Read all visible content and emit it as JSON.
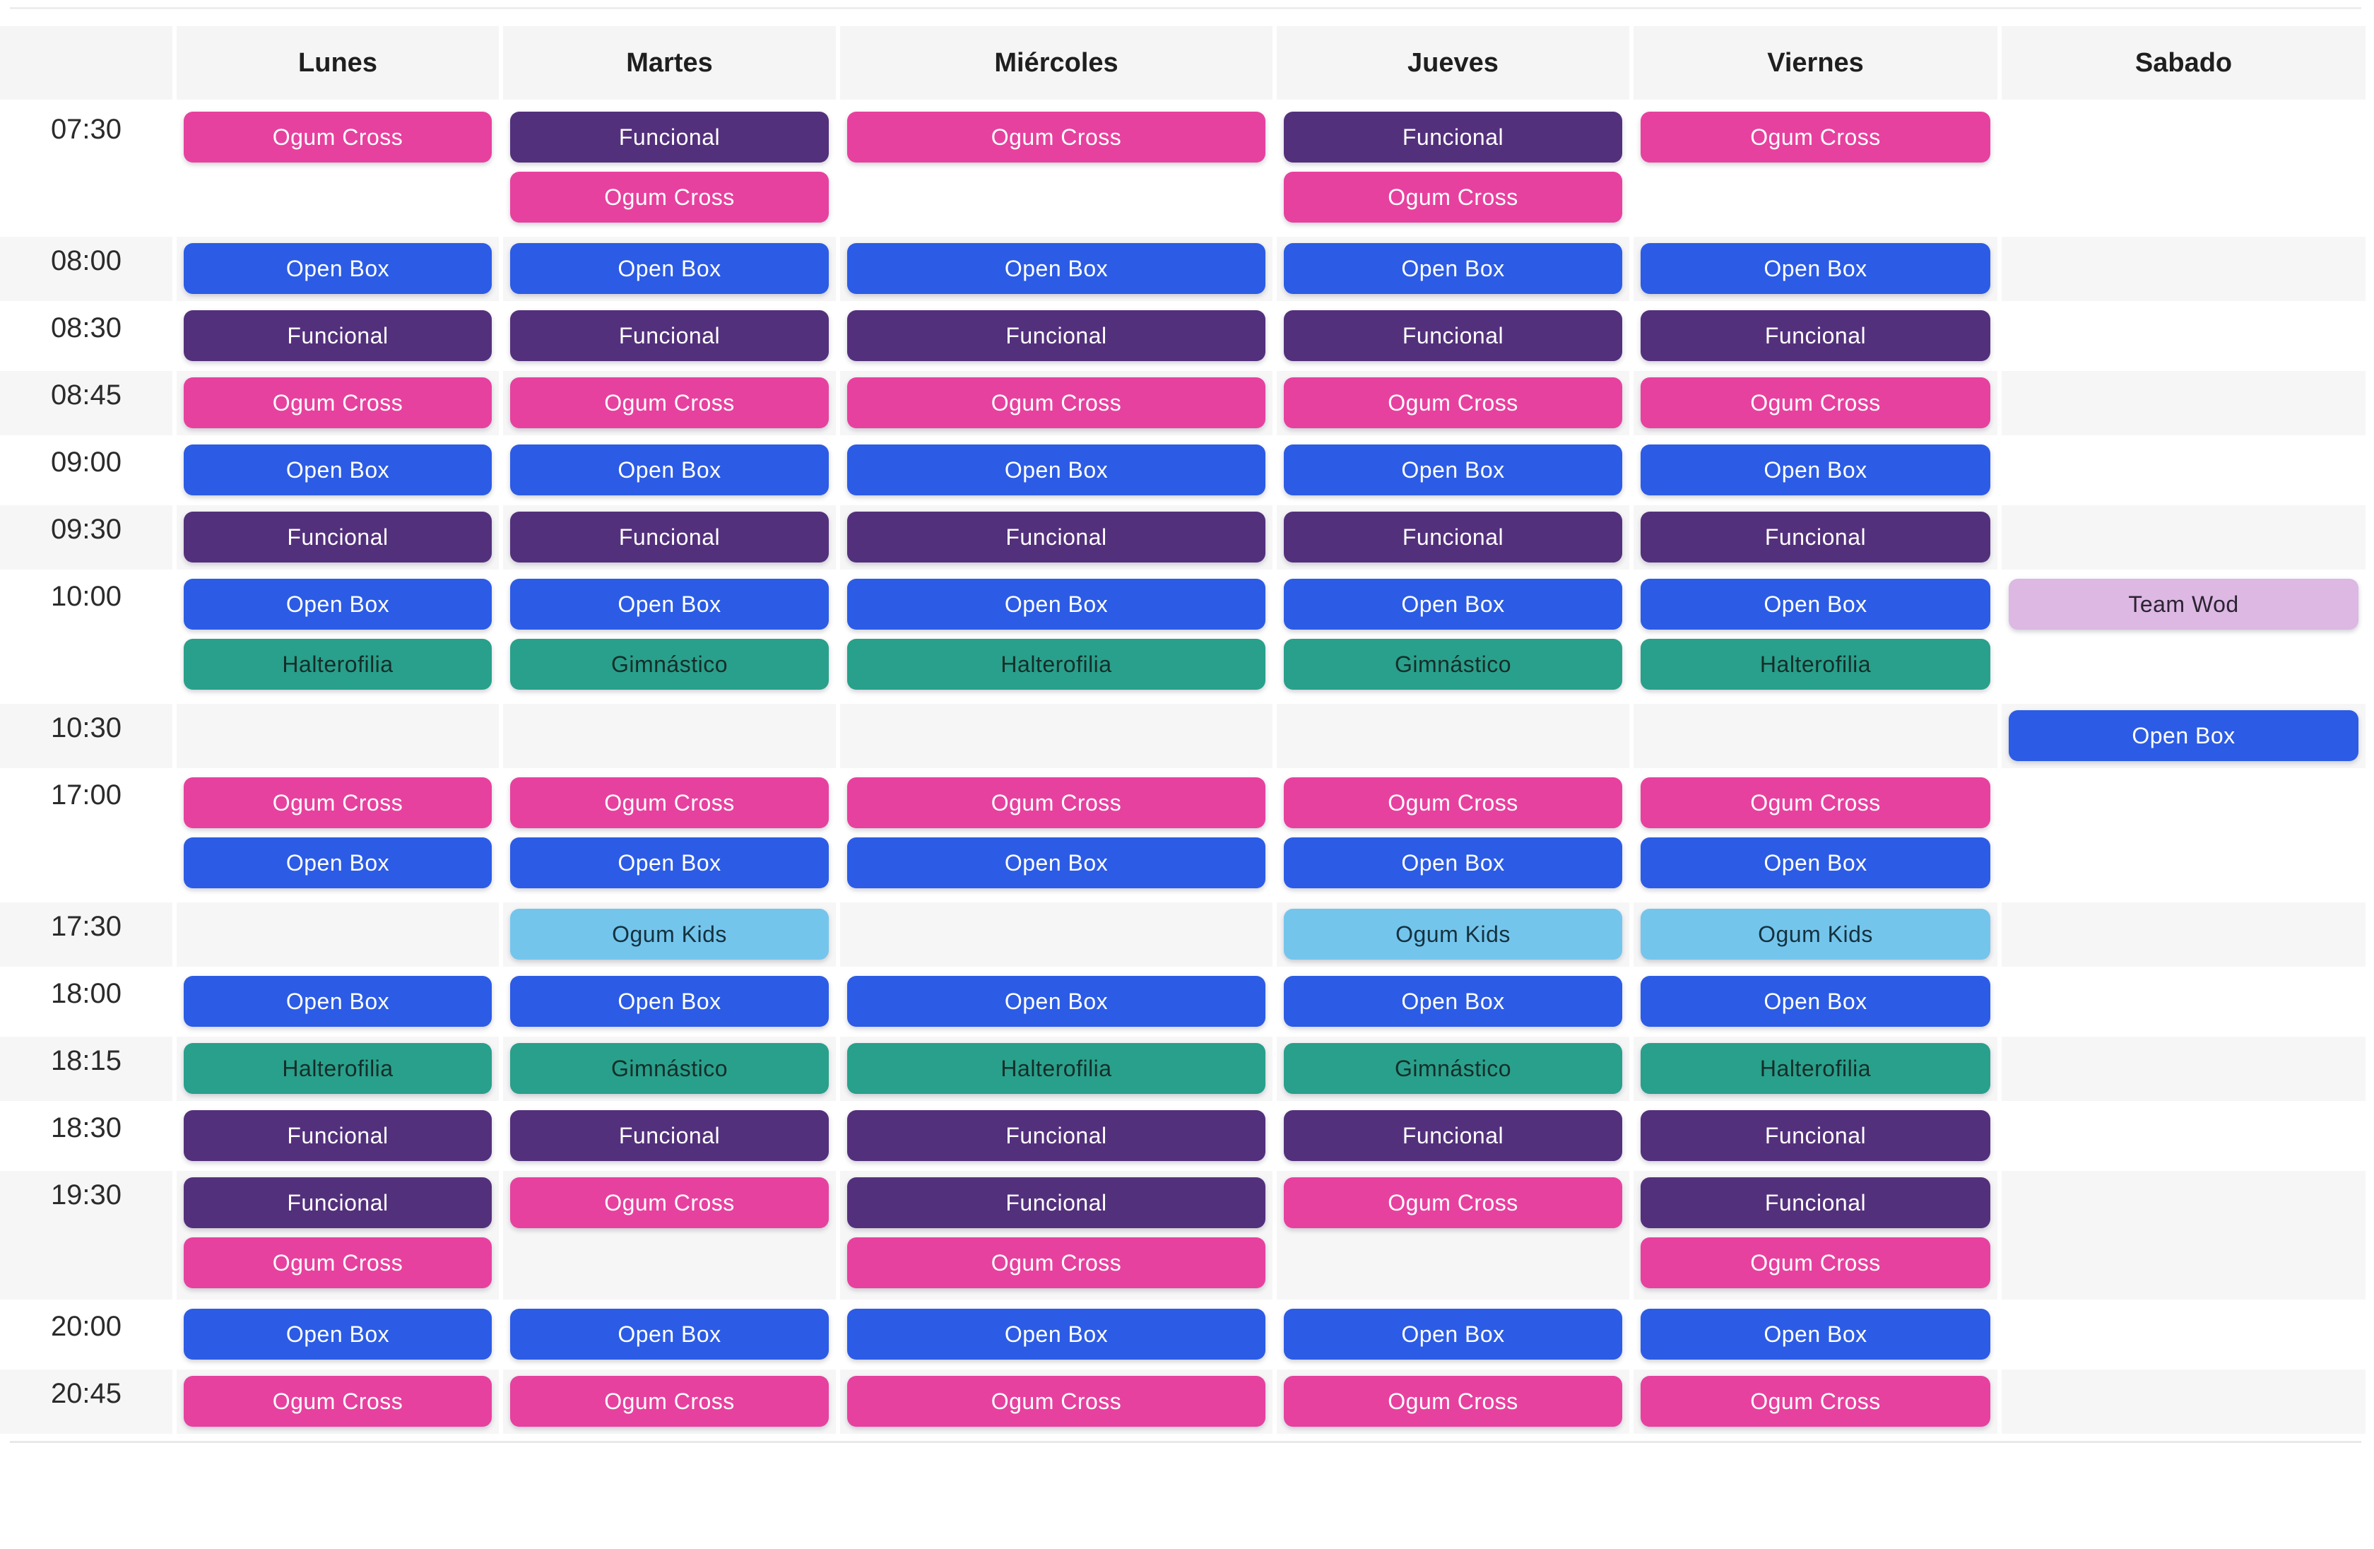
{
  "header": {
    "days": [
      "Lunes",
      "Martes",
      "Miércoles",
      "Jueves",
      "Viernes",
      "Sabado"
    ]
  },
  "class_types": {
    "ogum_cross": {
      "label": "Ogum Cross",
      "bg": "#e7419f",
      "text": "#ffffff"
    },
    "funcional": {
      "label": "Funcional",
      "bg": "#53307c",
      "text": "#ffffff"
    },
    "open_box": {
      "label": "Open Box",
      "bg": "#2c5ce5",
      "text": "#ffffff"
    },
    "halterofilia": {
      "label": "Halterofilia",
      "bg": "#29a08b",
      "text": "#152e2a"
    },
    "gimnastico": {
      "label": "Gimnástico",
      "bg": "#29a08b",
      "text": "#152e2a"
    },
    "ogum_kids": {
      "label": "Ogum Kids",
      "bg": "#74c5ec",
      "text": "#14323f"
    },
    "team_wod": {
      "label": "Team Wod",
      "bg": "#dcb8e3",
      "text": "#2c2333"
    }
  },
  "rows": [
    {
      "time": "07:30",
      "slots": 2,
      "cells": [
        [
          "ogum_cross"
        ],
        [
          "funcional",
          "ogum_cross"
        ],
        [
          "ogum_cross"
        ],
        [
          "funcional",
          "ogum_cross"
        ],
        [
          "ogum_cross"
        ],
        []
      ]
    },
    {
      "time": "08:00",
      "slots": 1,
      "cells": [
        [
          "open_box"
        ],
        [
          "open_box"
        ],
        [
          "open_box"
        ],
        [
          "open_box"
        ],
        [
          "open_box"
        ],
        []
      ]
    },
    {
      "time": "08:30",
      "slots": 1,
      "cells": [
        [
          "funcional"
        ],
        [
          "funcional"
        ],
        [
          "funcional"
        ],
        [
          "funcional"
        ],
        [
          "funcional"
        ],
        []
      ]
    },
    {
      "time": "08:45",
      "slots": 1,
      "cells": [
        [
          "ogum_cross"
        ],
        [
          "ogum_cross"
        ],
        [
          "ogum_cross"
        ],
        [
          "ogum_cross"
        ],
        [
          "ogum_cross"
        ],
        []
      ]
    },
    {
      "time": "09:00",
      "slots": 1,
      "cells": [
        [
          "open_box"
        ],
        [
          "open_box"
        ],
        [
          "open_box"
        ],
        [
          "open_box"
        ],
        [
          "open_box"
        ],
        []
      ]
    },
    {
      "time": "09:30",
      "slots": 1,
      "cells": [
        [
          "funcional"
        ],
        [
          "funcional"
        ],
        [
          "funcional"
        ],
        [
          "funcional"
        ],
        [
          "funcional"
        ],
        []
      ]
    },
    {
      "time": "10:00",
      "slots": 2,
      "cells": [
        [
          "open_box",
          "halterofilia"
        ],
        [
          "open_box",
          "gimnastico"
        ],
        [
          "open_box",
          "halterofilia"
        ],
        [
          "open_box",
          "gimnastico"
        ],
        [
          "open_box",
          "halterofilia"
        ],
        [
          "team_wod"
        ]
      ]
    },
    {
      "time": "10:30",
      "slots": 1,
      "cells": [
        [],
        [],
        [],
        [],
        [],
        [
          "open_box"
        ]
      ]
    },
    {
      "time": "17:00",
      "slots": 2,
      "cells": [
        [
          "ogum_cross",
          "open_box"
        ],
        [
          "ogum_cross",
          "open_box"
        ],
        [
          "ogum_cross",
          "open_box"
        ],
        [
          "ogum_cross",
          "open_box"
        ],
        [
          "ogum_cross",
          "open_box"
        ],
        []
      ]
    },
    {
      "time": "17:30",
      "slots": 1,
      "cells": [
        [],
        [
          "ogum_kids"
        ],
        [],
        [
          "ogum_kids"
        ],
        [
          "ogum_kids"
        ],
        []
      ]
    },
    {
      "time": "18:00",
      "slots": 1,
      "cells": [
        [
          "open_box"
        ],
        [
          "open_box"
        ],
        [
          "open_box"
        ],
        [
          "open_box"
        ],
        [
          "open_box"
        ],
        []
      ]
    },
    {
      "time": "18:15",
      "slots": 1,
      "cells": [
        [
          "halterofilia"
        ],
        [
          "gimnastico"
        ],
        [
          "halterofilia"
        ],
        [
          "gimnastico"
        ],
        [
          "halterofilia"
        ],
        []
      ]
    },
    {
      "time": "18:30",
      "slots": 1,
      "cells": [
        [
          "funcional"
        ],
        [
          "funcional"
        ],
        [
          "funcional"
        ],
        [
          "funcional"
        ],
        [
          "funcional"
        ],
        []
      ]
    },
    {
      "time": "19:30",
      "slots": 2,
      "cells": [
        [
          "funcional",
          "ogum_cross"
        ],
        [
          "ogum_cross"
        ],
        [
          "funcional",
          "ogum_cross"
        ],
        [
          "ogum_cross"
        ],
        [
          "funcional",
          "ogum_cross"
        ],
        []
      ]
    },
    {
      "time": "20:00",
      "slots": 1,
      "cells": [
        [
          "open_box"
        ],
        [
          "open_box"
        ],
        [
          "open_box"
        ],
        [
          "open_box"
        ],
        [
          "open_box"
        ],
        []
      ]
    },
    {
      "time": "20:45",
      "slots": 1,
      "cells": [
        [
          "ogum_cross"
        ],
        [
          "ogum_cross"
        ],
        [
          "ogum_cross"
        ],
        [
          "ogum_cross"
        ],
        [
          "ogum_cross"
        ],
        []
      ]
    }
  ]
}
